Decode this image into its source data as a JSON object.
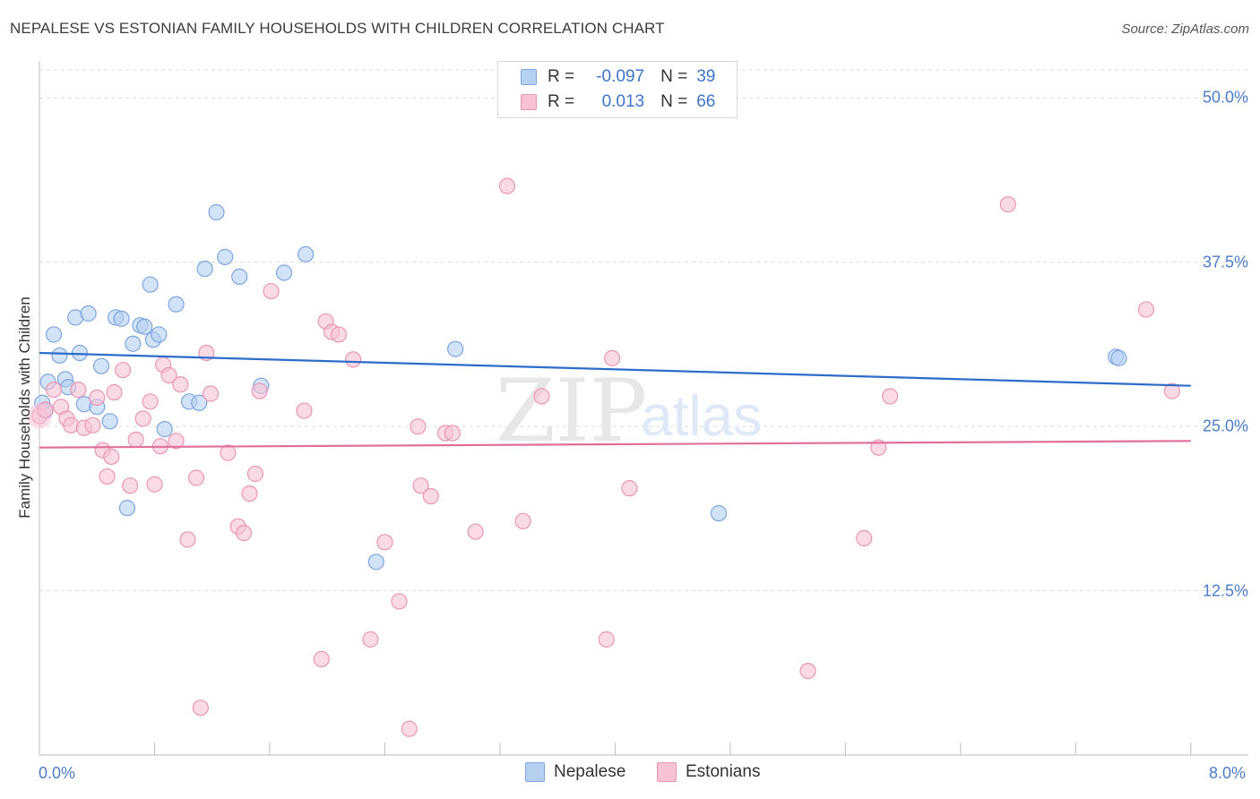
{
  "title": "NEPALESE VS ESTONIAN FAMILY HOUSEHOLDS WITH CHILDREN CORRELATION CHART",
  "source": "Source: ZipAtlas.com",
  "watermark": {
    "zip": "ZIP",
    "atlas": "atlas"
  },
  "legend": {
    "rows": [
      {
        "r_label": "R =",
        "r_value": "-0.097",
        "n_label": "N =",
        "n_value": "39"
      },
      {
        "r_label": "R =",
        "r_value": "0.013",
        "n_label": "N =",
        "n_value": "66"
      }
    ]
  },
  "bottom_legend": {
    "nepalese": "Nepalese",
    "estonians": "Estonians"
  },
  "colors": {
    "nepalese_fill": "#b6d0f2",
    "nepalese_stroke": "#7ea5de",
    "nepalese_line": "#2d6cc8",
    "estonian_fill": "#f7c3d4",
    "estonian_stroke": "#e996b3",
    "estonian_line": "#e0709a",
    "tick_text": "#4d7cc9",
    "grid": "#d9d9d9"
  },
  "chart_data": {
    "type": "scatter",
    "title": "NEPALESE VS ESTONIAN FAMILY HOUSEHOLDS WITH CHILDREN CORRELATION CHART",
    "xlabel": "",
    "ylabel": "Family Households with Children",
    "xlim": [
      0,
      8.4
    ],
    "ylim": [
      0,
      52
    ],
    "x_tick_labels": [
      "0.0%",
      "8.0%"
    ],
    "y_ticks": [
      {
        "value": 12.5,
        "label": "12.5%"
      },
      {
        "value": 25.0,
        "label": "25.0%"
      },
      {
        "value": 37.5,
        "label": "37.5%"
      },
      {
        "value": 50.0,
        "label": "50.0%"
      }
    ],
    "series": [
      {
        "name": "Nepalese",
        "r": -0.097,
        "n": 39,
        "trend": {
          "x": [
            0.0,
            8.0
          ],
          "y": [
            30.6,
            28.1
          ]
        },
        "points": [
          [
            0.02,
            26.8
          ],
          [
            0.04,
            26.2
          ],
          [
            0.06,
            28.4
          ],
          [
            0.1,
            32.0
          ],
          [
            0.14,
            30.4
          ],
          [
            0.18,
            28.6
          ],
          [
            0.2,
            28.0
          ],
          [
            0.25,
            33.3
          ],
          [
            0.28,
            30.6
          ],
          [
            0.31,
            26.7
          ],
          [
            0.34,
            33.6
          ],
          [
            0.4,
            26.5
          ],
          [
            0.43,
            29.6
          ],
          [
            0.49,
            25.4
          ],
          [
            0.53,
            33.3
          ],
          [
            0.57,
            33.2
          ],
          [
            0.61,
            18.8
          ],
          [
            0.65,
            31.3
          ],
          [
            0.7,
            32.7
          ],
          [
            0.73,
            32.6
          ],
          [
            0.77,
            35.8
          ],
          [
            0.79,
            31.6
          ],
          [
            0.83,
            32.0
          ],
          [
            0.87,
            24.8
          ],
          [
            0.95,
            34.3
          ],
          [
            1.04,
            26.9
          ],
          [
            1.11,
            26.8
          ],
          [
            1.15,
            37.0
          ],
          [
            1.23,
            41.3
          ],
          [
            1.29,
            37.9
          ],
          [
            1.39,
            36.4
          ],
          [
            1.54,
            28.1
          ],
          [
            1.7,
            36.7
          ],
          [
            1.85,
            38.1
          ],
          [
            2.89,
            30.9
          ],
          [
            2.34,
            14.7
          ],
          [
            4.72,
            18.4
          ],
          [
            7.48,
            30.3
          ],
          [
            7.5,
            30.2
          ]
        ]
      },
      {
        "name": "Estonians",
        "r": 0.013,
        "n": 66,
        "trend": {
          "x": [
            0.0,
            8.0
          ],
          "y": [
            23.4,
            23.9
          ]
        },
        "points": [
          [
            0.0,
            25.8
          ],
          [
            0.04,
            26.3
          ],
          [
            0.1,
            27.8
          ],
          [
            0.15,
            26.5
          ],
          [
            0.19,
            25.6
          ],
          [
            0.22,
            25.1
          ],
          [
            0.27,
            27.8
          ],
          [
            0.31,
            24.9
          ],
          [
            0.37,
            25.1
          ],
          [
            0.4,
            27.2
          ],
          [
            0.44,
            23.2
          ],
          [
            0.47,
            21.2
          ],
          [
            0.5,
            22.7
          ],
          [
            0.52,
            27.6
          ],
          [
            0.58,
            29.3
          ],
          [
            0.63,
            20.5
          ],
          [
            0.67,
            24.0
          ],
          [
            0.72,
            25.6
          ],
          [
            0.77,
            26.9
          ],
          [
            0.8,
            20.6
          ],
          [
            0.84,
            23.5
          ],
          [
            0.86,
            29.7
          ],
          [
            0.9,
            28.9
          ],
          [
            0.95,
            23.9
          ],
          [
            0.98,
            28.2
          ],
          [
            1.03,
            16.4
          ],
          [
            1.09,
            21.1
          ],
          [
            1.12,
            3.6
          ],
          [
            1.16,
            30.6
          ],
          [
            1.19,
            27.5
          ],
          [
            1.31,
            23.0
          ],
          [
            1.38,
            17.4
          ],
          [
            1.42,
            16.9
          ],
          [
            1.46,
            19.9
          ],
          [
            1.5,
            21.4
          ],
          [
            1.53,
            27.7
          ],
          [
            1.61,
            35.3
          ],
          [
            1.84,
            26.2
          ],
          [
            1.96,
            7.3
          ],
          [
            1.99,
            33.0
          ],
          [
            2.03,
            32.2
          ],
          [
            2.08,
            32.0
          ],
          [
            2.18,
            30.1
          ],
          [
            2.3,
            8.8
          ],
          [
            2.4,
            16.2
          ],
          [
            2.5,
            11.7
          ],
          [
            2.57,
            2.0
          ],
          [
            2.63,
            25.0
          ],
          [
            2.65,
            20.5
          ],
          [
            2.72,
            19.7
          ],
          [
            2.82,
            24.5
          ],
          [
            2.87,
            24.5
          ],
          [
            3.03,
            17.0
          ],
          [
            3.25,
            43.3
          ],
          [
            3.36,
            17.8
          ],
          [
            3.49,
            27.3
          ],
          [
            3.94,
            8.8
          ],
          [
            3.98,
            30.2
          ],
          [
            4.1,
            20.3
          ],
          [
            5.34,
            6.4
          ],
          [
            5.73,
            16.5
          ],
          [
            5.83,
            23.4
          ],
          [
            5.91,
            27.3
          ],
          [
            6.73,
            41.9
          ],
          [
            7.69,
            33.9
          ],
          [
            7.87,
            27.7
          ]
        ]
      }
    ]
  }
}
